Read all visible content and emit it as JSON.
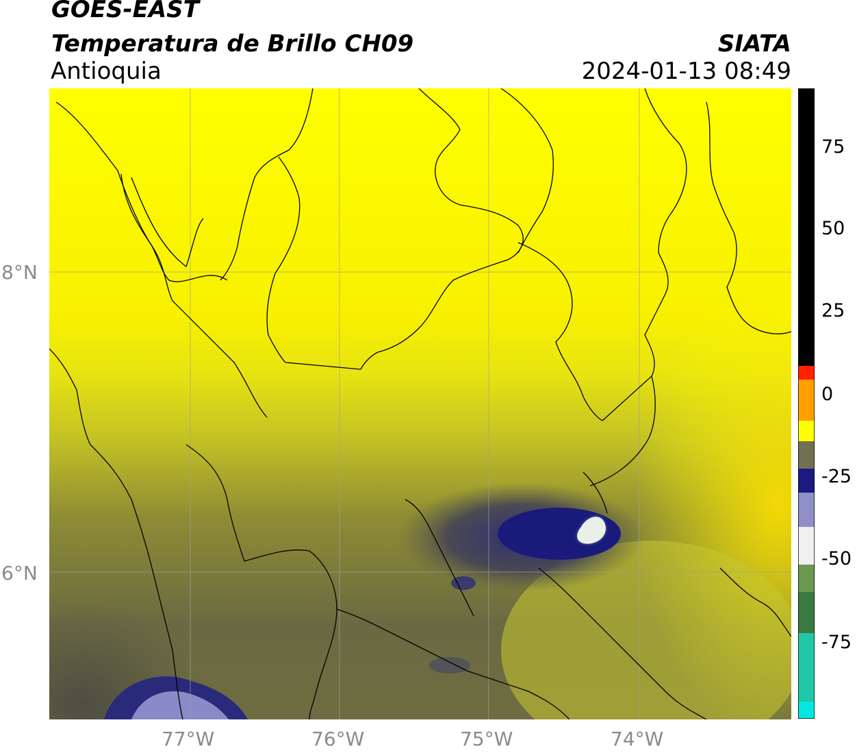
{
  "header": {
    "satellite": "GOES-EAST",
    "product": "Temperatura de Brillo CH09",
    "region": "Antioquia",
    "org": "SIATA",
    "datetime": "2024-01-13 08:49"
  },
  "map": {
    "lon_labels": [
      "77°W",
      "76°W",
      "75°W",
      "74°W"
    ],
    "lat_labels": [
      "8°N",
      "6°N"
    ],
    "colors": {
      "warm_yellow": "#ffff00",
      "mid_olive": "#9c9c2c",
      "cold_gray": "#5a5a44",
      "deep_blue": "#1a1a7a",
      "white_core": "#f0f4f0",
      "border": "#000000",
      "grid": "#a0a0a0"
    }
  },
  "colorbar": {
    "ticks": [
      "75",
      "50",
      "25",
      "0",
      "-25",
      "-50",
      "-75"
    ],
    "colors": [
      "#000000",
      "#ff0000",
      "#ff9900",
      "#ffff00",
      "#4a4a3a",
      "#101070",
      "#ffffff",
      "#3a8a3a",
      "#00e8e0"
    ]
  }
}
